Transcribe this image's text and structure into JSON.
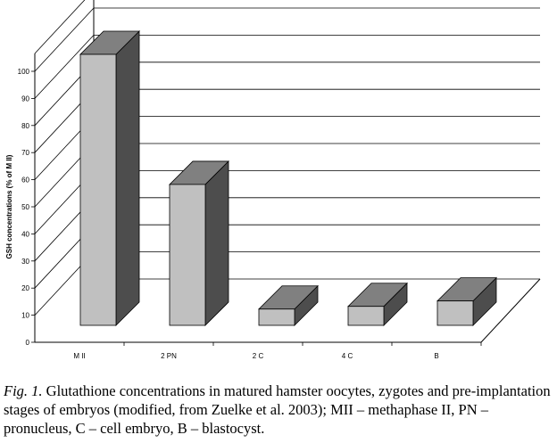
{
  "chart_data": {
    "type": "bar",
    "categories": [
      "M II",
      "2 PN",
      "2 C",
      "4 C",
      "B"
    ],
    "values": [
      100,
      52,
      6,
      7,
      9
    ],
    "title": "",
    "xlabel": "",
    "ylabel": "GSH concentrations (% of M II)",
    "ylim": [
      0,
      100
    ],
    "yticks": [
      "0",
      "10",
      "20",
      "30",
      "40",
      "50",
      "60",
      "70",
      "80",
      "90",
      "100"
    ],
    "grid": true,
    "bar_colors": {
      "front": "#c0c0c0",
      "side": "#4d4d4d",
      "top": "#808080"
    }
  },
  "caption": {
    "label": "Fig. 1.",
    "text": " Glutathione concentrations in matured hamster oocytes, zygotes and pre-implantation stages of embryos (modified, from Zuelke et al. 2003); MII – methaphase II, PN – pronucleus, C – cell embryo, B – blastocyst."
  }
}
